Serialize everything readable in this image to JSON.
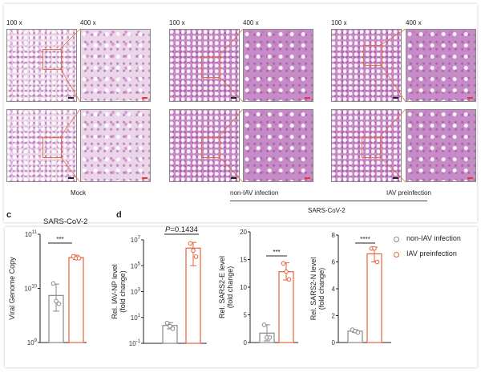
{
  "histology": {
    "magnifications": [
      "100 x",
      "400 x"
    ],
    "groups": [
      {
        "label": "Mock"
      },
      {
        "label": "non-IAV infection"
      },
      {
        "label": "IAV preinfection"
      }
    ],
    "bracket_label": "SARS-CoV-2"
  },
  "panel_c": {
    "letter": "c",
    "title": "SARS-CoV-2"
  },
  "panel_d": {
    "letter": "d"
  },
  "legend": {
    "items": [
      {
        "label": "non-IAV infection",
        "color": "#888888"
      },
      {
        "label": "IAV preinfection",
        "color": "#e8603c"
      }
    ]
  },
  "chart_data": [
    {
      "type": "bar",
      "panel": "c",
      "title": "SARS-CoV-2",
      "ylabel": [
        "Viral Genome Copy"
      ],
      "yscale": "log",
      "ylim": [
        1000000000.0,
        100000000000.0
      ],
      "yticks": [
        "10^9",
        "10^10",
        "10^11"
      ],
      "significance": "***",
      "series": [
        {
          "name": "non-IAV infection",
          "mean": 7400000000.0,
          "err": [
            3800000000.0,
            12000000000.0
          ],
          "points": [
            12300000000.0,
            5800000000.0,
            5200000000.0
          ]
        },
        {
          "name": "IAV preinfection",
          "mean": 37000000000.0,
          "err": [
            34000000000.0,
            41000000000.0
          ],
          "points": [
            39000000000.0,
            36000000000.0,
            36000000000.0
          ]
        }
      ]
    },
    {
      "type": "bar",
      "panel": "d",
      "ylabel": [
        "Rel. IAV-NP level",
        "(fold change)"
      ],
      "yscale": "log",
      "ylim": [
        0.1,
        10000000.0
      ],
      "yticks": [
        "10^-1",
        "10^1",
        "10^3",
        "10^5",
        "10^7"
      ],
      "significance": "P=0.1434",
      "series": [
        {
          "name": "non-IAV infection",
          "mean": 2.4,
          "err": [
            1.3,
            4.0
          ],
          "points": [
            3.7,
            2.1,
            1.35
          ]
        },
        {
          "name": "IAV preinfection",
          "mean": 2300000.0,
          "err": [
            100000.0,
            6300000.0
          ],
          "points": [
            5300000.0,
            1500000.0,
            500000.0
          ]
        }
      ]
    },
    {
      "type": "bar",
      "panel": "d",
      "ylabel": [
        "Rel. SARS2-E level",
        "(fold change)"
      ],
      "yscale": "linear",
      "ylim": [
        0,
        20
      ],
      "yticks": [
        "0",
        "5",
        "10",
        "15",
        "20"
      ],
      "significance": "***",
      "series": [
        {
          "name": "non-IAV infection",
          "mean": 1.7,
          "err": [
            0.3,
            3.2
          ],
          "points": [
            3.2,
            0.9,
            0.9
          ]
        },
        {
          "name": "IAV preinfection",
          "mean": 12.8,
          "err": [
            11.3,
            14.4
          ],
          "points": [
            14.3,
            12.8,
            11.4
          ]
        }
      ]
    },
    {
      "type": "bar",
      "panel": "d",
      "ylabel": [
        "Rel. SARS2-N level",
        "(fold change)"
      ],
      "yscale": "linear",
      "ylim": [
        0,
        8
      ],
      "yticks": [
        "0",
        "2",
        "4",
        "6",
        "8"
      ],
      "significance": "****",
      "series": [
        {
          "name": "non-IAV infection",
          "mean": 0.85,
          "err": [
            0.75,
            0.95
          ],
          "points": [
            0.95,
            0.85,
            0.75
          ]
        },
        {
          "name": "IAV preinfection",
          "mean": 6.6,
          "err": [
            6.0,
            7.1
          ],
          "points": [
            7.0,
            7.0,
            6.0
          ]
        }
      ]
    }
  ]
}
